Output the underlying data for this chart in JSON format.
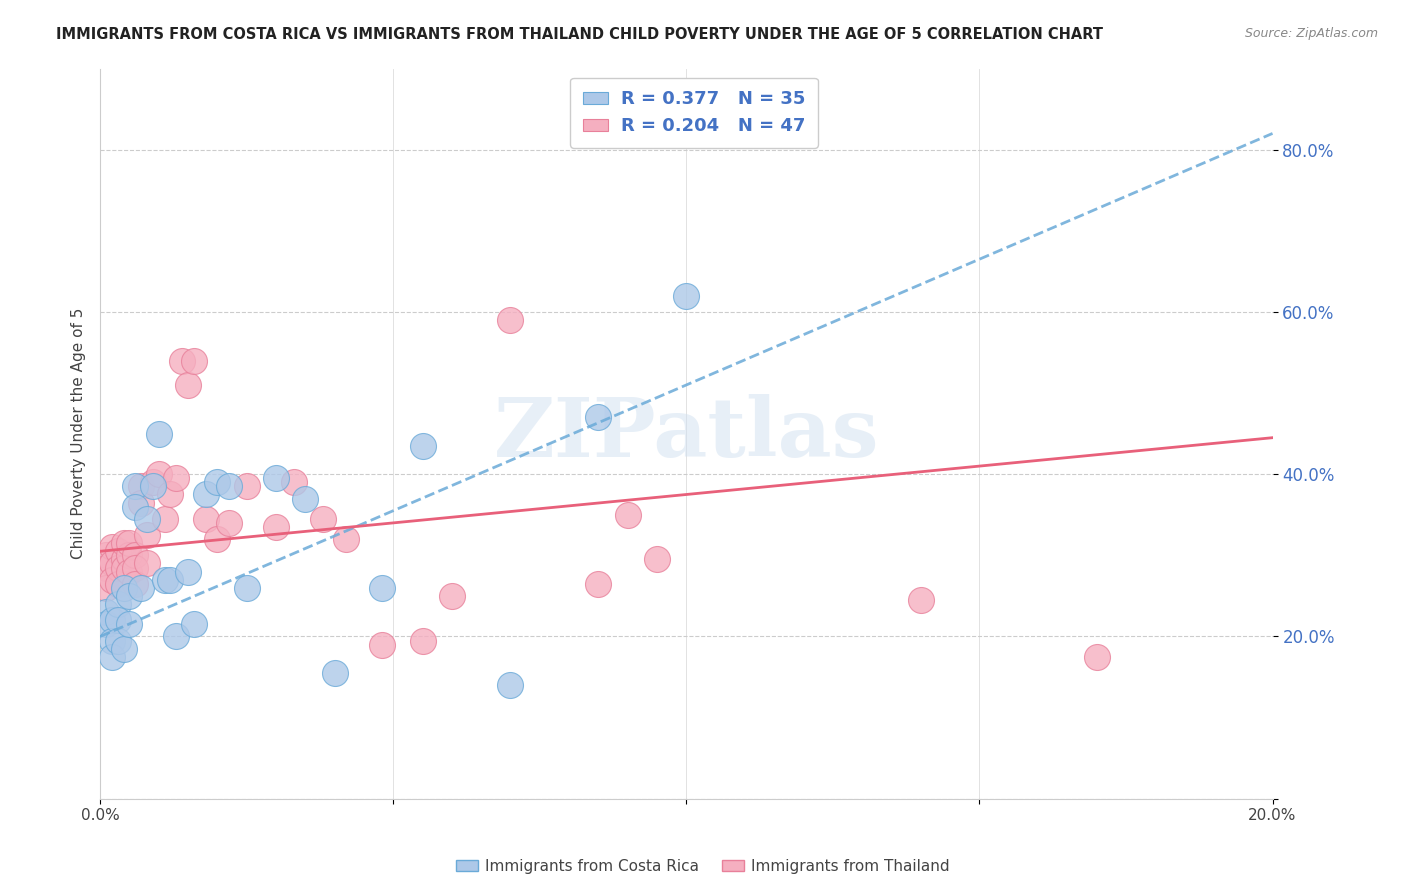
{
  "title": "IMMIGRANTS FROM COSTA RICA VS IMMIGRANTS FROM THAILAND CHILD POVERTY UNDER THE AGE OF 5 CORRELATION CHART",
  "source": "Source: ZipAtlas.com",
  "ylabel": "Child Poverty Under the Age of 5",
  "xlim": [
    0.0,
    0.2
  ],
  "ylim": [
    0.0,
    0.9
  ],
  "yticks": [
    0.0,
    0.2,
    0.4,
    0.6,
    0.8
  ],
  "ytick_labels": [
    "",
    "20.0%",
    "40.0%",
    "60.0%",
    "80.0%"
  ],
  "xtick_positions": [
    0.0,
    0.05,
    0.1,
    0.15,
    0.2
  ],
  "xtick_labels": [
    "0.0%",
    "",
    "",
    "",
    "20.0%"
  ],
  "legend_r_costa_rica": "R = 0.377",
  "legend_n_costa_rica": "N = 35",
  "legend_r_thailand": "R = 0.204",
  "legend_n_thailand": "N = 47",
  "costa_rica_fill": "#adc8e8",
  "costa_rica_edge": "#6aaad8",
  "thailand_fill": "#f5afc0",
  "thailand_edge": "#e8809a",
  "trend_cr_color": "#6aaad8",
  "trend_th_color": "#e8607a",
  "watermark_color": "#d0e0f0",
  "trend_cr_x0": 0.0,
  "trend_cr_y0": 0.2,
  "trend_cr_x1": 0.2,
  "trend_cr_y1": 0.82,
  "trend_th_x0": 0.0,
  "trend_th_y0": 0.305,
  "trend_th_x1": 0.2,
  "trend_th_y1": 0.445,
  "costa_rica_x": [
    0.001,
    0.001,
    0.002,
    0.002,
    0.002,
    0.003,
    0.003,
    0.003,
    0.004,
    0.004,
    0.005,
    0.005,
    0.006,
    0.006,
    0.007,
    0.008,
    0.009,
    0.01,
    0.011,
    0.012,
    0.013,
    0.015,
    0.016,
    0.018,
    0.02,
    0.022,
    0.025,
    0.03,
    0.035,
    0.04,
    0.048,
    0.055,
    0.07,
    0.085,
    0.1
  ],
  "costa_rica_y": [
    0.23,
    0.215,
    0.22,
    0.195,
    0.175,
    0.24,
    0.22,
    0.195,
    0.26,
    0.185,
    0.25,
    0.215,
    0.385,
    0.36,
    0.26,
    0.345,
    0.385,
    0.45,
    0.27,
    0.27,
    0.2,
    0.28,
    0.215,
    0.375,
    0.39,
    0.385,
    0.26,
    0.395,
    0.37,
    0.155,
    0.26,
    0.435,
    0.14,
    0.47,
    0.62
  ],
  "thailand_x": [
    0.001,
    0.001,
    0.001,
    0.002,
    0.002,
    0.002,
    0.003,
    0.003,
    0.003,
    0.004,
    0.004,
    0.004,
    0.005,
    0.005,
    0.005,
    0.006,
    0.006,
    0.006,
    0.007,
    0.007,
    0.008,
    0.008,
    0.009,
    0.01,
    0.011,
    0.012,
    0.013,
    0.014,
    0.015,
    0.016,
    0.018,
    0.02,
    0.022,
    0.025,
    0.03,
    0.033,
    0.038,
    0.042,
    0.048,
    0.055,
    0.06,
    0.07,
    0.085,
    0.09,
    0.095,
    0.14,
    0.17
  ],
  "thailand_y": [
    0.3,
    0.285,
    0.26,
    0.31,
    0.29,
    0.27,
    0.305,
    0.285,
    0.265,
    0.295,
    0.315,
    0.285,
    0.3,
    0.315,
    0.28,
    0.3,
    0.285,
    0.265,
    0.385,
    0.365,
    0.325,
    0.29,
    0.39,
    0.4,
    0.345,
    0.375,
    0.395,
    0.54,
    0.51,
    0.54,
    0.345,
    0.32,
    0.34,
    0.385,
    0.335,
    0.39,
    0.345,
    0.32,
    0.19,
    0.195,
    0.25,
    0.59,
    0.265,
    0.35,
    0.295,
    0.245,
    0.175
  ]
}
